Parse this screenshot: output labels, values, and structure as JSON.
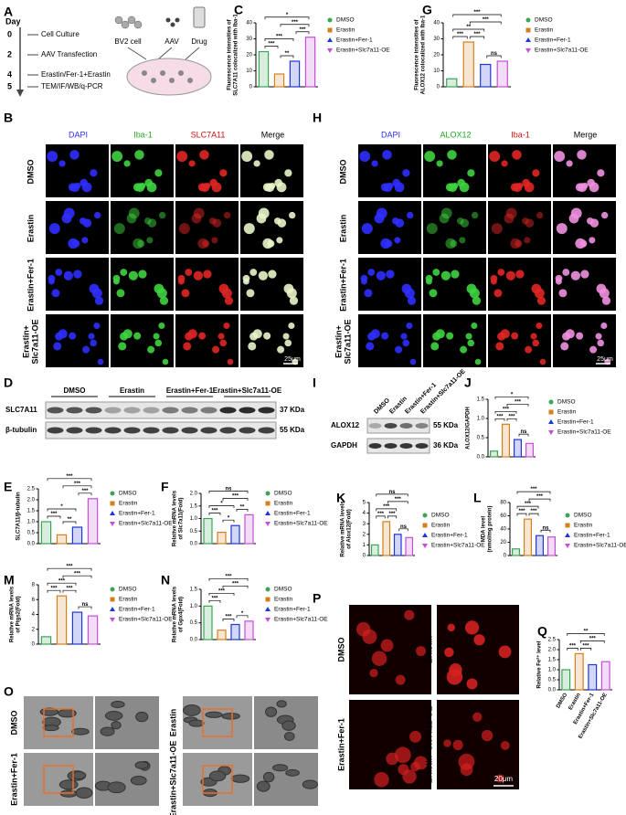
{
  "panel_labels": [
    "A",
    "B",
    "C",
    "D",
    "E",
    "F",
    "G",
    "H",
    "I",
    "J",
    "K",
    "L",
    "M",
    "N",
    "O",
    "P",
    "Q"
  ],
  "schematic": {
    "day_label": "Day",
    "steps": [
      {
        "day": "0",
        "label": "Cell Culture"
      },
      {
        "day": "2",
        "label": "AAV Transfection"
      },
      {
        "day": "4",
        "label": "Erastin/Fer-1+Erastin"
      },
      {
        "day": "5",
        "label": "TEM/IF/WB/q-PCR"
      }
    ],
    "icons": [
      "BV2 cell",
      "AAV",
      "Drug"
    ]
  },
  "if_B": {
    "columns": [
      "DAPI",
      "Iba-1",
      "SLC7A11",
      "Merge"
    ],
    "rows": [
      [
        "DMSO"
      ],
      [
        "Erastin"
      ],
      [
        "Erastin+Fer-1"
      ],
      [
        "Erastin+",
        "Slc7a11-OE"
      ]
    ],
    "scale": "25μm"
  },
  "if_H": {
    "columns": [
      "DAPI",
      "ALOX12",
      "Iba-1",
      "Merge"
    ],
    "rows": [
      [
        "DMSO"
      ],
      [
        "Erastin"
      ],
      [
        "Erastin+Fer-1"
      ],
      [
        "Erastin+",
        "Slc7a11-OE"
      ]
    ],
    "scale": "25μm"
  },
  "blot_D": {
    "groups": [
      "DMSO",
      "Erastin",
      "Erastin+Fer-1",
      "Erastin+Slc7a11-OE"
    ],
    "rows": [
      {
        "label": "SLC7A11",
        "size": "37 KDa"
      },
      {
        "label": "β-tubulin",
        "size": "55 KDa"
      }
    ]
  },
  "blot_I": {
    "lanes": [
      "DMSO",
      "Erastin",
      "Erastin+Fer-1",
      "Erastin+Slc7a11-OE"
    ],
    "rows": [
      {
        "label": "ALOX12",
        "size": "55 KDa"
      },
      {
        "label": "GAPDH",
        "size": "36 KDa"
      }
    ]
  },
  "tem_O": {
    "labels": [
      "DMSO",
      "Erastin",
      "Erastin+Fer-1",
      "Erastin+Slc7a11-OE"
    ]
  },
  "fe_P": {
    "labels": [
      "DMSO",
      "Erastin",
      "Erastin+Fer-1",
      "Erastin+Slc7a11-OE"
    ],
    "scale": "20μm"
  },
  "chart_data": [
    {
      "type": "bar",
      "panel": "C",
      "ylabel": [
        "Fluorescence intensities of",
        "SLC7A11 colocalized with Iba-1"
      ],
      "categories": [
        "DMSO",
        "Erastin",
        "Erastin+Fer-1",
        "Erastin+Slc7a11-OE"
      ],
      "values": [
        22,
        8,
        16,
        31
      ],
      "colors": [
        "#3aa655",
        "#d4801f",
        "#2036d8",
        "#c44fd6"
      ],
      "ylim": [
        0,
        40
      ],
      "yticks": [
        0,
        10,
        20,
        30,
        40
      ],
      "legend": true,
      "significance": [
        {
          "groups": [
            0,
            1
          ],
          "label": "***"
        },
        {
          "groups": [
            1,
            2
          ],
          "label": "**"
        },
        {
          "groups": [
            2,
            3
          ],
          "label": "***"
        },
        {
          "groups": [
            0,
            2
          ],
          "label": "***"
        },
        {
          "groups": [
            1,
            3
          ],
          "label": "***"
        },
        {
          "groups": [
            0,
            3
          ],
          "label": "*"
        }
      ]
    },
    {
      "type": "bar",
      "panel": "G",
      "ylabel": [
        "Fluorescence intensities of",
        "ALOX12 colocalized with Iba-1"
      ],
      "categories": [
        "DMSO",
        "Erastin",
        "Erastin+Fer-1",
        "Erastin+Slc7a11-OE"
      ],
      "values": [
        5,
        28,
        14,
        16
      ],
      "colors": [
        "#3aa655",
        "#d4801f",
        "#2036d8",
        "#c44fd6"
      ],
      "ylim": [
        0,
        40
      ],
      "yticks": [
        0,
        10,
        20,
        30,
        40
      ],
      "legend": true,
      "significance": [
        {
          "groups": [
            0,
            1
          ],
          "label": "***"
        },
        {
          "groups": [
            1,
            2
          ],
          "label": "***"
        },
        {
          "groups": [
            2,
            3
          ],
          "label": "ns"
        },
        {
          "groups": [
            0,
            2
          ],
          "label": "**"
        },
        {
          "groups": [
            1,
            3
          ],
          "label": "***"
        },
        {
          "groups": [
            0,
            3
          ],
          "label": "***"
        }
      ]
    },
    {
      "type": "bar",
      "panel": "E",
      "ylabel": [
        "SLC7A11/β-tubulin"
      ],
      "categories": [
        "DMSO",
        "Erastin",
        "Erastin+Fer-1",
        "Erastin+Slc7a11-OE"
      ],
      "values": [
        1.0,
        0.4,
        0.75,
        2.05
      ],
      "colors": [
        "#3aa655",
        "#d4801f",
        "#2036d8",
        "#c44fd6"
      ],
      "ylim": [
        0,
        2.5
      ],
      "yticks": [
        {
          "value": 0,
          "label": "0.0"
        },
        0.5,
        {
          "value": 1,
          "label": "1.0"
        },
        1.5,
        {
          "value": 2,
          "label": "2.0"
        },
        2.5
      ],
      "legend": true,
      "significance": [
        {
          "groups": [
            0,
            1
          ],
          "label": "***"
        },
        {
          "groups": [
            1,
            2
          ],
          "label": "**"
        },
        {
          "groups": [
            2,
            3
          ],
          "label": "***"
        },
        {
          "groups": [
            0,
            2
          ],
          "label": "*"
        },
        {
          "groups": [
            1,
            3
          ],
          "label": "***"
        },
        {
          "groups": [
            0,
            3
          ],
          "label": "***"
        }
      ]
    },
    {
      "type": "bar",
      "panel": "F",
      "ylabel": [
        "Relative mRNA levels",
        "of Slc7a11(Fold)"
      ],
      "categories": [
        "DMSO",
        "Erastin",
        "Erastin+Fer-1",
        "Erastin+Slc7a11-OE"
      ],
      "values": [
        1.0,
        0.45,
        0.72,
        1.15
      ],
      "colors": [
        "#3aa655",
        "#d4801f",
        "#2036d8",
        "#c44fd6"
      ],
      "ylim": [
        0,
        2
      ],
      "yticks": [
        {
          "value": 0,
          "label": "0.0"
        },
        0.5,
        {
          "value": 1,
          "label": "1.0"
        },
        1.5,
        {
          "value": 2,
          "label": "2.0"
        }
      ],
      "legend": true,
      "significance": [
        {
          "groups": [
            0,
            1
          ],
          "label": "***"
        },
        {
          "groups": [
            1,
            2
          ],
          "label": "*"
        },
        {
          "groups": [
            2,
            3
          ],
          "label": "**"
        },
        {
          "groups": [
            0,
            2
          ],
          "label": "*"
        },
        {
          "groups": [
            1,
            3
          ],
          "label": "***"
        },
        {
          "groups": [
            0,
            3
          ],
          "label": "ns"
        }
      ]
    },
    {
      "type": "bar",
      "panel": "J",
      "ylabel": [
        "ALOX12/GAPDH"
      ],
      "categories": [
        "DMSO",
        "Erastin",
        "Erastin+Fer-1",
        "Erastin+Slc7a11-OE"
      ],
      "values": [
        0.15,
        0.85,
        0.45,
        0.35
      ],
      "colors": [
        "#3aa655",
        "#d4801f",
        "#2036d8",
        "#c44fd6"
      ],
      "ylim": [
        0,
        1.5
      ],
      "yticks": [
        {
          "value": 0,
          "label": "0.0"
        },
        0.5,
        {
          "value": 1,
          "label": "1.0"
        },
        1.5
      ],
      "legend": true,
      "significance": [
        {
          "groups": [
            0,
            1
          ],
          "label": "***"
        },
        {
          "groups": [
            1,
            2
          ],
          "label": "***"
        },
        {
          "groups": [
            2,
            3
          ],
          "label": "ns"
        },
        {
          "groups": [
            0,
            2
          ],
          "label": "***"
        },
        {
          "groups": [
            1,
            3
          ],
          "label": "***"
        },
        {
          "groups": [
            0,
            3
          ],
          "label": "*"
        }
      ]
    },
    {
      "type": "bar",
      "panel": "K",
      "ylabel": [
        "Relative mRNA levels",
        "of Alox12(Fold)"
      ],
      "categories": [
        "DMSO",
        "Erastin",
        "Erastin+Fer-1",
        "Erastin+Slc7a11-OE"
      ],
      "values": [
        1.0,
        3.2,
        2.0,
        1.7
      ],
      "colors": [
        "#3aa655",
        "#d4801f",
        "#2036d8",
        "#c44fd6"
      ],
      "ylim": [
        0,
        5
      ],
      "yticks": [
        0,
        1,
        2,
        3,
        4,
        5
      ],
      "legend": true,
      "significance": [
        {
          "groups": [
            0,
            1
          ],
          "label": "***"
        },
        {
          "groups": [
            1,
            2
          ],
          "label": "***"
        },
        {
          "groups": [
            2,
            3
          ],
          "label": "ns"
        },
        {
          "groups": [
            0,
            2
          ],
          "label": "***"
        },
        {
          "groups": [
            1,
            3
          ],
          "label": "***"
        },
        {
          "groups": [
            0,
            3
          ],
          "label": "ns"
        }
      ]
    },
    {
      "type": "bar",
      "panel": "L",
      "ylabel": [
        "MDA level",
        "(nmol/mg protein)"
      ],
      "categories": [
        "DMSO",
        "Erastin",
        "Erastin+Fer-1",
        "Erastin+Slc7a11-OE"
      ],
      "values": [
        10,
        55,
        30,
        28
      ],
      "colors": [
        "#3aa655",
        "#d4801f",
        "#2036d8",
        "#c44fd6"
      ],
      "ylim": [
        0,
        80
      ],
      "yticks": [
        0,
        20,
        40,
        60,
        80
      ],
      "legend": true,
      "significance": [
        {
          "groups": [
            0,
            1
          ],
          "label": "***"
        },
        {
          "groups": [
            1,
            2
          ],
          "label": "***"
        },
        {
          "groups": [
            2,
            3
          ],
          "label": "ns"
        },
        {
          "groups": [
            0,
            2
          ],
          "label": "***"
        },
        {
          "groups": [
            1,
            3
          ],
          "label": "***"
        },
        {
          "groups": [
            0,
            3
          ],
          "label": "***"
        }
      ]
    },
    {
      "type": "bar",
      "panel": "M",
      "ylabel": [
        "Relative mRNA levels",
        "of Ptgs2(Fold)"
      ],
      "categories": [
        "DMSO",
        "Erastin",
        "Erastin+Fer-1",
        "Erastin+Slc7a11-OE"
      ],
      "values": [
        1.0,
        6.5,
        4.3,
        3.8
      ],
      "colors": [
        "#3aa655",
        "#d4801f",
        "#2036d8",
        "#c44fd6"
      ],
      "ylim": [
        0,
        8
      ],
      "yticks": [
        0,
        2,
        4,
        6,
        8
      ],
      "legend": true,
      "significance": [
        {
          "groups": [
            0,
            1
          ],
          "label": "***"
        },
        {
          "groups": [
            1,
            2
          ],
          "label": "***"
        },
        {
          "groups": [
            2,
            3
          ],
          "label": "ns"
        },
        {
          "groups": [
            0,
            2
          ],
          "label": "***"
        },
        {
          "groups": [
            1,
            3
          ],
          "label": "***"
        },
        {
          "groups": [
            0,
            3
          ],
          "label": "***"
        }
      ]
    },
    {
      "type": "bar",
      "panel": "N",
      "ylabel": [
        "Relative mRNA levels",
        "of Gpx4(Fold)"
      ],
      "categories": [
        "DMSO",
        "Erastin",
        "Erastin+Fer-1",
        "Erastin+Slc7a11-OE"
      ],
      "values": [
        1.0,
        0.28,
        0.45,
        0.55
      ],
      "colors": [
        "#3aa655",
        "#d4801f",
        "#2036d8",
        "#c44fd6"
      ],
      "ylim": [
        0,
        1.5
      ],
      "yticks": [
        {
          "value": 0,
          "label": "0.0"
        },
        0.5,
        {
          "value": 1,
          "label": "1.0"
        },
        1.5
      ],
      "legend": true,
      "significance": [
        {
          "groups": [
            0,
            1
          ],
          "label": "***"
        },
        {
          "groups": [
            1,
            2
          ],
          "label": "***"
        },
        {
          "groups": [
            2,
            3
          ],
          "label": "*"
        },
        {
          "groups": [
            0,
            2
          ],
          "label": "***"
        },
        {
          "groups": [
            1,
            3
          ],
          "label": "***"
        },
        {
          "groups": [
            0,
            3
          ],
          "label": "***"
        }
      ]
    },
    {
      "type": "bar",
      "panel": "Q",
      "ylabel": [
        "Relative Fe²⁺ level"
      ],
      "categories": [
        "DMSO",
        "Erastin",
        "Erastin+Fer-1",
        "Erastin+Slc7a11-OE"
      ],
      "values": [
        1.0,
        1.8,
        1.25,
        1.4
      ],
      "colors": [
        "#3aa655",
        "#d4801f",
        "#2036d8",
        "#c44fd6"
      ],
      "ylim": [
        0,
        2.5
      ],
      "yticks": [
        {
          "value": 0,
          "label": "0.0"
        },
        0.5,
        {
          "value": 1,
          "label": "1.0"
        },
        1.5,
        {
          "value": 2,
          "label": "2.0"
        },
        2.5
      ],
      "legend": false,
      "significance": [
        {
          "groups": [
            0,
            1
          ],
          "label": "***"
        },
        {
          "groups": [
            1,
            2
          ],
          "label": "***"
        },
        {
          "groups": [
            1,
            3
          ],
          "label": "***"
        },
        {
          "groups": [
            0,
            3
          ],
          "label": "**"
        }
      ]
    }
  ]
}
